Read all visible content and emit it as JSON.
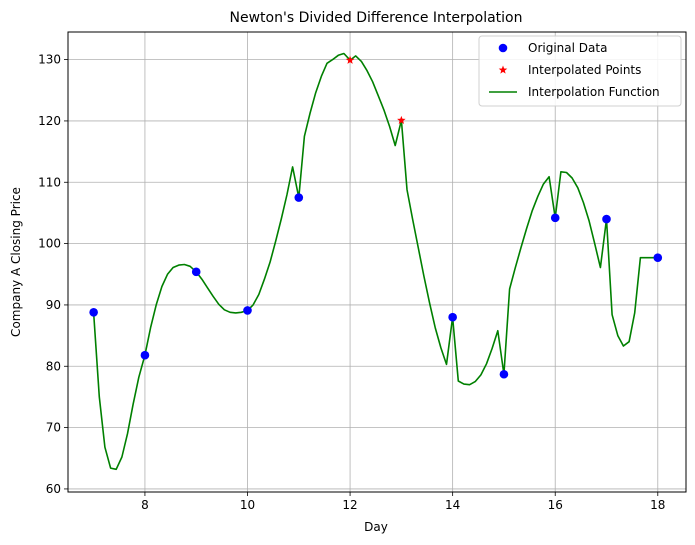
{
  "chart_data": {
    "type": "line",
    "title": "Newton's Divided Difference Interpolation",
    "xlabel": "Day",
    "ylabel": "Company A Closing Price",
    "xlim": [
      6.5,
      18.55
    ],
    "ylim": [
      59.5,
      134.5
    ],
    "xticks": [
      8,
      10,
      12,
      14,
      16,
      18
    ],
    "yticks": [
      60,
      70,
      80,
      90,
      100,
      110,
      120,
      130
    ],
    "grid": true,
    "legend_position": "upper right",
    "series": [
      {
        "name": "Original Data",
        "kind": "scatter",
        "marker": "circle",
        "color": "#0000ff",
        "x": [
          7,
          8,
          9,
          10,
          11,
          14,
          15,
          16,
          17,
          18
        ],
        "y": [
          88.8,
          81.8,
          95.4,
          89.1,
          107.5,
          88.0,
          78.7,
          104.2,
          104.0,
          97.7
        ]
      },
      {
        "name": "Interpolated Points",
        "kind": "scatter",
        "marker": "star",
        "color": "#ff0000",
        "x": [
          12,
          13
        ],
        "y": [
          129.9,
          120.1
        ]
      },
      {
        "name": "Interpolation Function",
        "kind": "line",
        "color": "#008000",
        "x": [
          7.0,
          7.11,
          7.22,
          7.33,
          7.44,
          7.55,
          7.66,
          7.77,
          7.88,
          8.0,
          8.11,
          8.22,
          8.33,
          8.44,
          8.55,
          8.66,
          8.77,
          8.88,
          9.0,
          9.11,
          9.22,
          9.33,
          9.44,
          9.55,
          9.66,
          9.77,
          9.88,
          10.0,
          10.11,
          10.22,
          10.33,
          10.44,
          10.55,
          10.66,
          10.77,
          10.88,
          11.0,
          11.11,
          11.22,
          11.33,
          11.44,
          11.55,
          11.66,
          11.77,
          11.88,
          12.0,
          12.11,
          12.22,
          12.33,
          12.44,
          12.55,
          12.66,
          12.77,
          12.88,
          13.0,
          13.11,
          13.22,
          13.33,
          13.44,
          13.55,
          13.66,
          13.77,
          13.88,
          14.0,
          14.11,
          14.22,
          14.33,
          14.44,
          14.55,
          14.66,
          14.77,
          14.88,
          15.0,
          15.11,
          15.22,
          15.33,
          15.44,
          15.55,
          15.66,
          15.77,
          15.88,
          16.0,
          16.11,
          16.22,
          16.33,
          16.44,
          16.55,
          16.66,
          16.77,
          16.88,
          17.0,
          17.11,
          17.22,
          17.33,
          17.44,
          17.55,
          17.66,
          17.77,
          17.88,
          18.0
        ],
        "y": [
          88.8,
          75.0,
          66.8,
          63.4,
          63.2,
          65.2,
          69.0,
          73.8,
          78.2,
          81.8,
          86.3,
          90.0,
          93.0,
          95.0,
          96.1,
          96.5,
          96.6,
          96.3,
          95.4,
          94.2,
          92.8,
          91.4,
          90.1,
          89.2,
          88.8,
          88.7,
          88.8,
          89.1,
          90.0,
          91.7,
          94.2,
          97.0,
          100.4,
          104.1,
          108.0,
          112.5,
          107.5,
          117.5,
          121.3,
          124.6,
          127.3,
          129.4,
          130.0,
          130.7,
          131.0,
          129.9,
          130.6,
          129.7,
          128.2,
          126.4,
          124.1,
          121.8,
          119.1,
          116.0,
          120.1,
          108.8,
          104.0,
          99.3,
          94.7,
          90.3,
          86.3,
          83.0,
          80.3,
          88.0,
          77.6,
          77.1,
          77.0,
          77.5,
          78.6,
          80.4,
          82.9,
          85.8,
          78.7,
          92.6,
          96.0,
          99.3,
          102.4,
          105.3,
          107.7,
          109.7,
          110.9,
          104.2,
          111.7,
          111.6,
          110.7,
          109.1,
          106.7,
          103.7,
          100.0,
          96.1,
          104.0,
          88.4,
          85.0,
          83.3,
          84.0,
          88.7,
          97.7,
          97.7,
          97.7,
          97.7
        ]
      }
    ]
  }
}
